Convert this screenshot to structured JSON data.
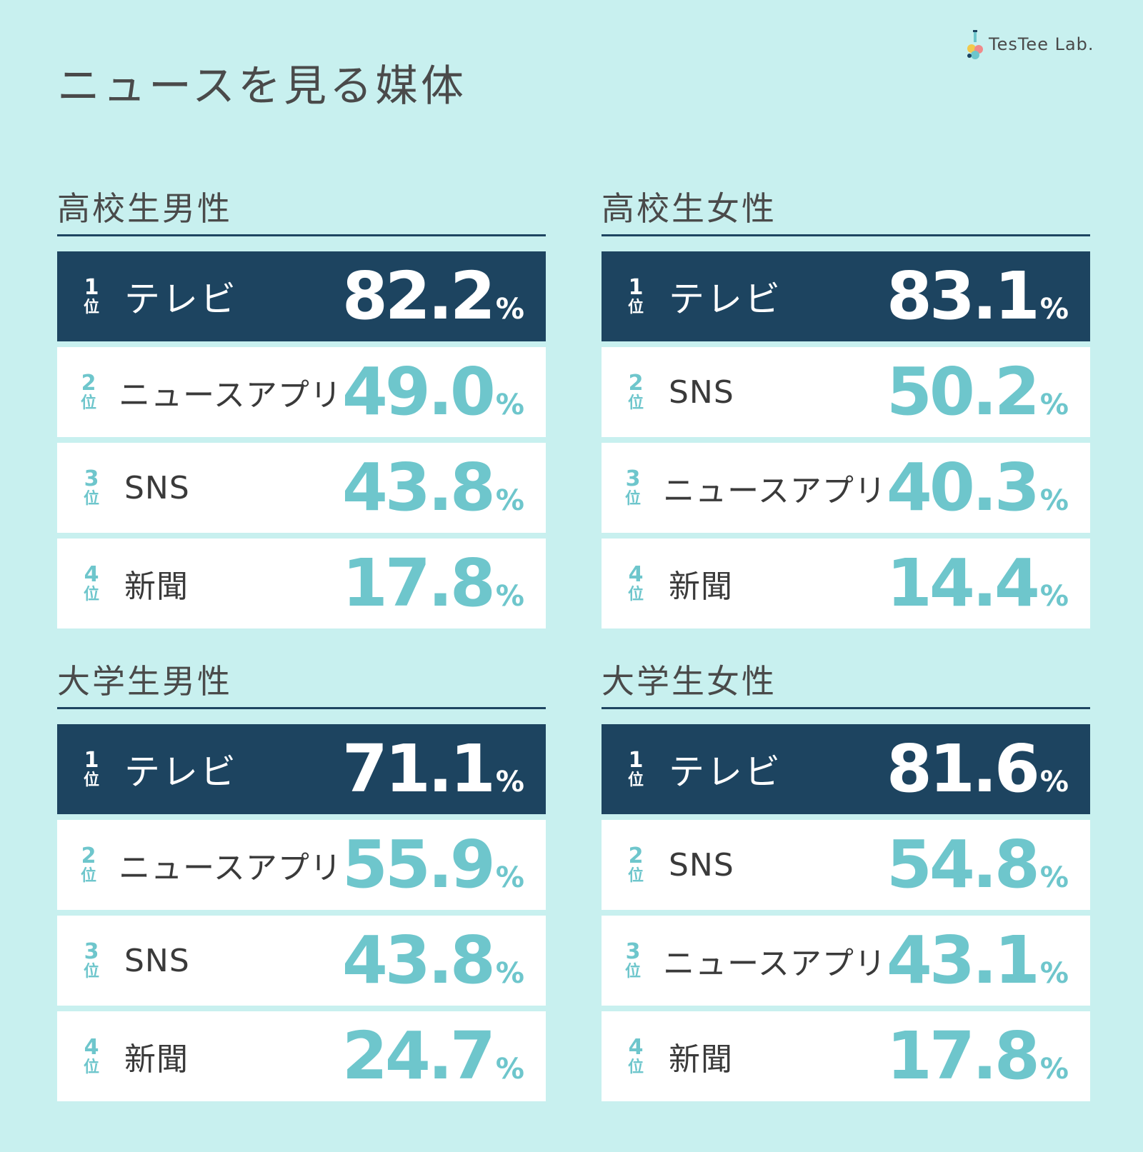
{
  "title": "ニュースを見る媒体",
  "logo": {
    "text": "TesTee Lab."
  },
  "rank_suffix": "位",
  "unit": "%",
  "chart_data": [
    {
      "type": "table",
      "title": "高校生男性",
      "rows": [
        {
          "rank": "1",
          "label": "テレビ",
          "value": 82.2,
          "display": "82.2"
        },
        {
          "rank": "2",
          "label": "ニュースアプリ",
          "value": 49.0,
          "display": "49.0"
        },
        {
          "rank": "3",
          "label": "SNS",
          "value": 43.8,
          "display": "43.8"
        },
        {
          "rank": "4",
          "label": "新聞",
          "value": 17.8,
          "display": "17.8"
        }
      ]
    },
    {
      "type": "table",
      "title": "高校生女性",
      "rows": [
        {
          "rank": "1",
          "label": "テレビ",
          "value": 83.1,
          "display": "83.1"
        },
        {
          "rank": "2",
          "label": "SNS",
          "value": 50.2,
          "display": "50.2"
        },
        {
          "rank": "3",
          "label": "ニュースアプリ",
          "value": 40.3,
          "display": "40.3"
        },
        {
          "rank": "4",
          "label": "新聞",
          "value": 14.4,
          "display": "14.4"
        }
      ]
    },
    {
      "type": "table",
      "title": "大学生男性",
      "rows": [
        {
          "rank": "1",
          "label": "テレビ",
          "value": 71.1,
          "display": "71.1"
        },
        {
          "rank": "2",
          "label": "ニュースアプリ",
          "value": 55.9,
          "display": "55.9"
        },
        {
          "rank": "3",
          "label": "SNS",
          "value": 43.8,
          "display": "43.8"
        },
        {
          "rank": "4",
          "label": "新聞",
          "value": 24.7,
          "display": "24.7"
        }
      ]
    },
    {
      "type": "table",
      "title": "大学生女性",
      "rows": [
        {
          "rank": "1",
          "label": "テレビ",
          "value": 81.6,
          "display": "81.6"
        },
        {
          "rank": "2",
          "label": "SNS",
          "value": 54.8,
          "display": "54.8"
        },
        {
          "rank": "3",
          "label": "ニュースアプリ",
          "value": 43.1,
          "display": "43.1"
        },
        {
          "rank": "4",
          "label": "新聞",
          "value": 17.8,
          "display": "17.8"
        }
      ]
    }
  ],
  "colors": {
    "background": "#c8f0ef",
    "top_row": "#1d4460",
    "accent": "#6ec6cc",
    "text": "#4a4a4a"
  }
}
